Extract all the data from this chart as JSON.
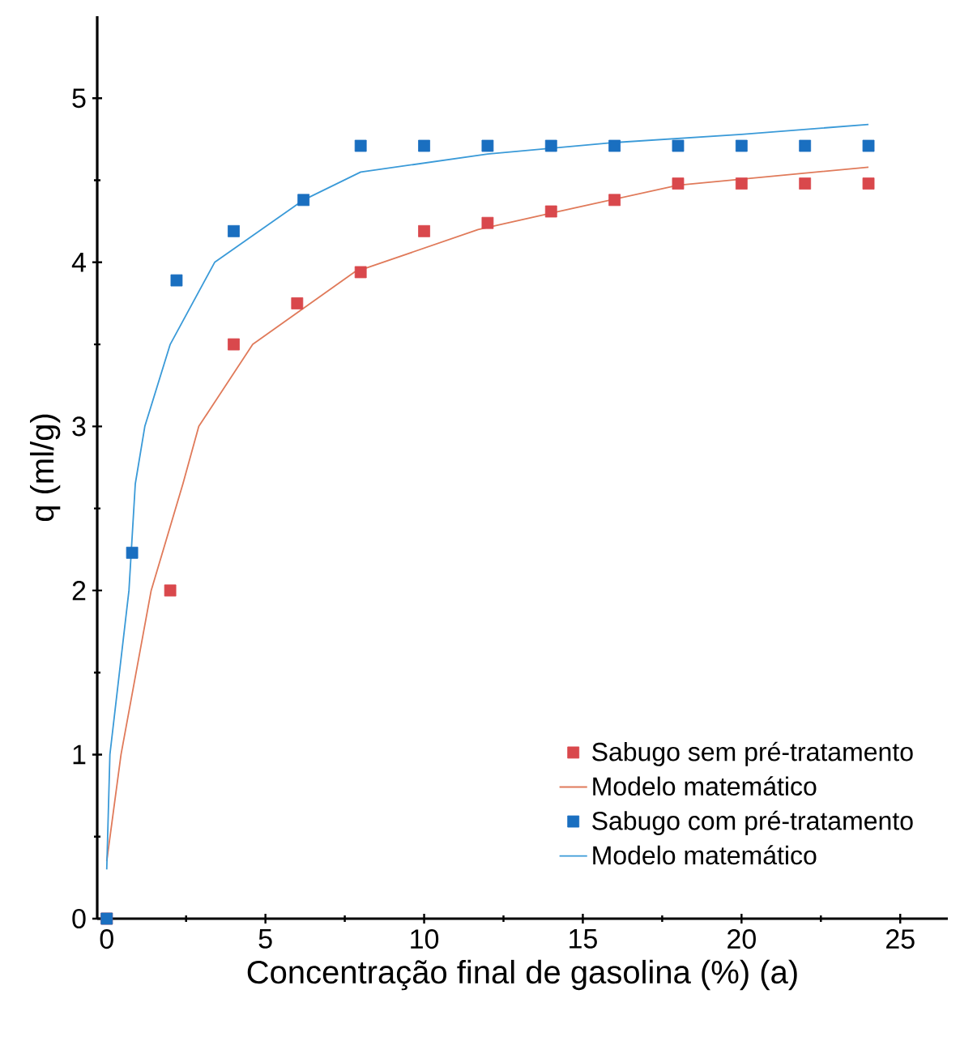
{
  "chart_data": {
    "type": "scatter",
    "xlabel": "Concentração final de gasolina (%)   (a)",
    "ylabel": "q (ml/g)",
    "xlim": [
      -0.3,
      26.5
    ],
    "ylim": [
      0,
      5.5
    ],
    "xticks": [
      0,
      5,
      10,
      15,
      20,
      25
    ],
    "yticks": [
      0,
      1,
      2,
      3,
      4,
      5
    ],
    "legend": "bottom right",
    "series": [
      {
        "name": "Sabugo sem pré-tratamento",
        "marker": "square",
        "color": "#d9484c",
        "x": [
          0,
          2,
          4,
          6,
          8,
          10,
          12,
          14,
          16,
          18,
          20,
          22,
          24
        ],
        "values": [
          0,
          2.0,
          3.5,
          3.75,
          3.94,
          4.19,
          4.24,
          4.31,
          4.38,
          4.48,
          4.48,
          4.48,
          4.48
        ]
      },
      {
        "name": "Modelo matemático",
        "type": "line",
        "marker": "none",
        "line_style": "solid",
        "color": "#e07a5a",
        "x": [
          0,
          0.45,
          1.4,
          2.4,
          2.9,
          4.6,
          7.8,
          11.7,
          14,
          18,
          24
        ],
        "values": [
          0.35,
          1.0,
          2.0,
          2.65,
          3.0,
          3.5,
          3.94,
          4.2,
          4.3,
          4.47,
          4.58
        ]
      },
      {
        "name": "Sabugo com pré-tratamento",
        "marker": "square",
        "color": "#1a6fc0",
        "x": [
          0,
          0.8,
          2.2,
          4,
          6.2,
          8,
          10,
          12,
          14,
          16,
          18,
          20,
          22,
          24
        ],
        "values": [
          0,
          2.23,
          3.89,
          4.19,
          4.38,
          4.71,
          4.71,
          4.71,
          4.71,
          4.71,
          4.71,
          4.71,
          4.71,
          4.71
        ]
      },
      {
        "name": "Modelo matemático",
        "type": "line",
        "marker": "none",
        "line_style": "solid",
        "color": "#3a9ad8",
        "x": [
          0,
          0.1,
          0.7,
          0.9,
          1.2,
          2.0,
          3.4,
          6.2,
          8,
          12,
          16,
          20,
          24
        ],
        "values": [
          0.3,
          1.0,
          2.0,
          2.65,
          3.0,
          3.5,
          4.0,
          4.38,
          4.55,
          4.66,
          4.73,
          4.78,
          4.84
        ]
      }
    ]
  }
}
